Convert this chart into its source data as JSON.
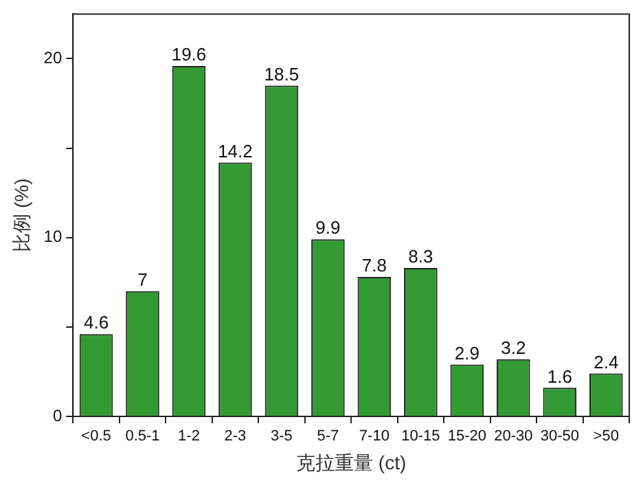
{
  "chart_data": {
    "type": "bar",
    "xlabel": "克拉重量 (ct)",
    "ylabel": "比例 (%)",
    "categories": [
      "<0.5",
      "0.5-1",
      "1-2",
      "2-3",
      "3-5",
      "5-7",
      "7-10",
      "10-15",
      "15-20",
      "20-30",
      "30-50",
      ">50"
    ],
    "values": [
      4.6,
      7,
      19.6,
      14.2,
      18.5,
      9.9,
      7.8,
      8.3,
      2.9,
      3.2,
      1.6,
      2.4
    ],
    "color": "#339933",
    "ylim": [
      0,
      22.5
    ],
    "yticks": [
      0,
      {
        "value": 5,
        "label": null
      },
      10,
      {
        "value": 15,
        "label": null
      },
      20
    ],
    "data_labels": true,
    "grid": false,
    "legend": false
  }
}
